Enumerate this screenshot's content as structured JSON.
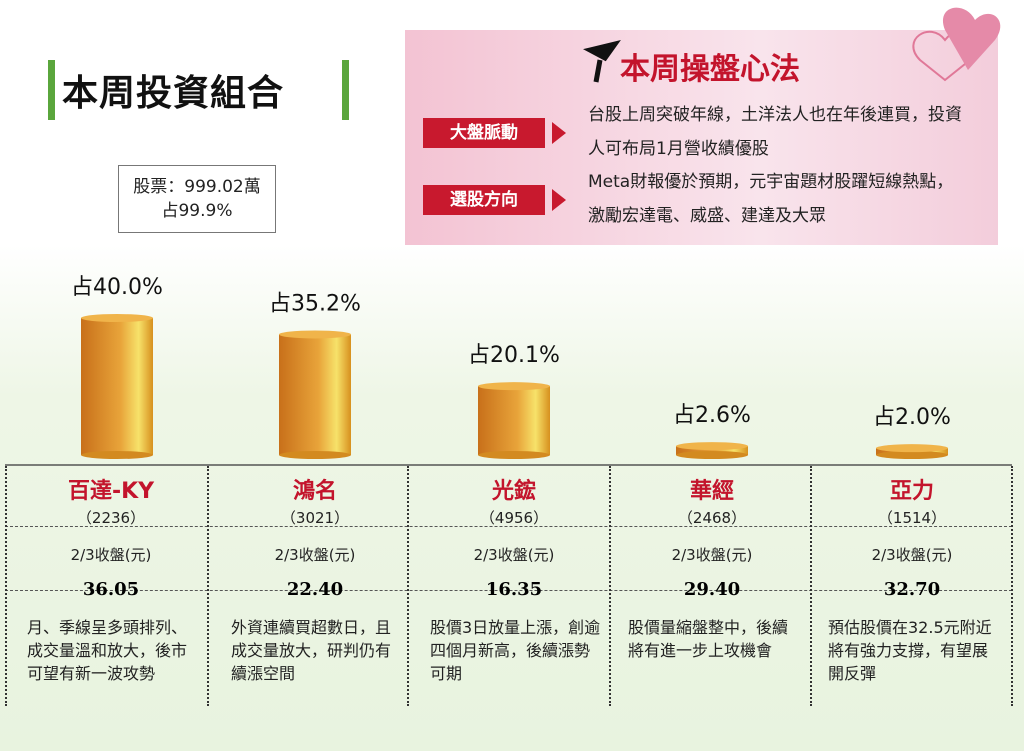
{
  "header": {
    "title": "本周投資組合"
  },
  "summary": {
    "line1": "股票：999.02萬",
    "line2": "占99.9%"
  },
  "strategy": {
    "title": "本周操盤心法",
    "items": [
      {
        "tag": "大盤脈動",
        "text": "台股上周突破年線，土洋法人也在年後連買，投資人可布局1月營收績優股"
      },
      {
        "tag": "選股方向",
        "text": "Meta財報優於預期，元宇宙題材股躍短線熱點，激勵宏達電、威盛、建達及大眾"
      }
    ]
  },
  "chart_data": {
    "type": "bar",
    "categories": [
      "百達-KY",
      "鴻名",
      "光鋐",
      "華經",
      "亞力"
    ],
    "values": [
      40.0,
      35.2,
      20.1,
      2.6,
      2.0
    ],
    "value_labels": [
      "占40.0%",
      "占35.2%",
      "占20.1%",
      "占2.6%",
      "占2.0%"
    ],
    "color": "#d98a1c"
  },
  "stocks": {
    "price_label": "2/3收盤(元)",
    "codes": [
      "（2236）",
      "（3021）",
      "（4956）",
      "（2468）",
      "（1514）"
    ],
    "prices": [
      "36.05",
      "22.40",
      "16.35",
      "29.40",
      "32.70"
    ],
    "notes": [
      "月、季線呈多頭排列、成交量溫和放大，後市可望有新一波攻勢",
      "外資連續買超數日，且成交量放大，研判仍有續漲空間",
      "股價3日放量上漲，創逾四個月新高，後續漲勢可期",
      "股價量縮盤整中，後續將有進一步上攻機會",
      "預估股價在32.5元附近將有強力支撐，有望展開反彈"
    ]
  }
}
